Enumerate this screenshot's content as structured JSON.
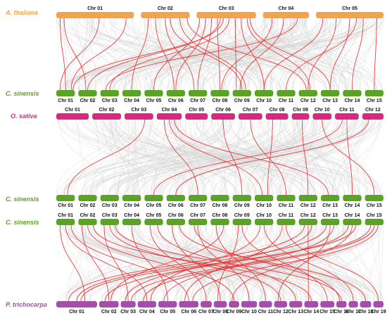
{
  "colors": {
    "thaliana": "#f5a24a",
    "sinensis": "#5aa324",
    "sativa": "#d42b82",
    "trichocarpa": "#a44fa7",
    "background_links": "#d2d2d2",
    "highlight_links": "#ec2b2b"
  },
  "species_labels": {
    "thaliana": "A. thaliana",
    "sinensis": "C. sinensis",
    "sativa": "O. sativa",
    "trichocarpa": "P. trichocarpa"
  },
  "chromosomes": {
    "thaliana": [
      "Chr 01",
      "Chr 02",
      "Chr 03",
      "Chr 04",
      "Chr 05"
    ],
    "sinensis": [
      "Chr 01",
      "Chr 02",
      "Chr 03",
      "Chr 04",
      "Chr 05",
      "Chr 06",
      "Chr 07",
      "Chr 08",
      "Chr 09",
      "Chr 10",
      "Chr 11",
      "Chr 12",
      "Chr 13",
      "Chr 14",
      "Chr 15"
    ],
    "sativa": [
      "Chr 01",
      "Chr 02",
      "Chr 03",
      "Chr 04",
      "Chr 05",
      "Chr 06",
      "Chr 07",
      "Chr 08",
      "Chr 09",
      "Chr 10",
      "Chr 11",
      "Chr 12"
    ],
    "trichocarpa": [
      "Chr 01",
      "Chr 02",
      "Chr 03",
      "Chr 04",
      "Chr 05",
      "Chr 06",
      "Chr 07",
      "Chr 08",
      "Chr 09",
      "Chr 10",
      "Chr 11",
      "Chr 12",
      "Chr 13",
      "Chr 14",
      "Chr 15",
      "Chr 16",
      "Chr 17",
      "Chr 18",
      "Chr 19"
    ]
  },
  "panels": [
    {
      "top_species": "thaliana",
      "bottom_species": "sinensis",
      "links": [
        [
          1,
          0.05,
          1,
          0.5
        ],
        [
          1,
          0.1,
          2,
          0.4
        ],
        [
          1,
          0.55,
          1,
          0.2
        ],
        [
          1,
          0.9,
          1,
          0.8
        ],
        [
          2,
          0.15,
          4,
          0.5
        ],
        [
          2,
          0.3,
          6,
          0.4
        ],
        [
          2,
          0.5,
          7,
          0.3
        ],
        [
          2,
          0.6,
          9,
          0.5
        ],
        [
          2,
          0.8,
          9,
          0.7
        ],
        [
          2,
          0.95,
          12,
          0.4
        ],
        [
          3,
          0.05,
          5,
          0.5
        ],
        [
          3,
          0.15,
          6,
          0.5
        ],
        [
          3,
          0.25,
          7,
          0.5
        ],
        [
          3,
          0.35,
          8,
          0.5
        ],
        [
          3,
          0.4,
          2,
          0.5
        ],
        [
          3,
          0.45,
          1,
          0.9
        ],
        [
          3,
          0.55,
          3,
          0.5
        ],
        [
          3,
          0.65,
          9,
          0.2
        ],
        [
          3,
          0.75,
          10,
          0.5
        ],
        [
          3,
          0.85,
          12,
          0.6
        ],
        [
          3,
          0.9,
          13,
          0.5
        ],
        [
          4,
          0.2,
          8,
          0.6
        ],
        [
          4,
          0.45,
          9,
          0.4
        ],
        [
          4,
          0.75,
          3,
          0.3
        ],
        [
          5,
          0.1,
          10,
          0.5
        ],
        [
          5,
          0.3,
          12,
          0.5
        ],
        [
          5,
          0.5,
          13,
          0.5
        ],
        [
          5,
          0.7,
          14,
          0.5
        ],
        [
          5,
          0.9,
          15,
          0.5
        ],
        [
          5,
          0.6,
          11,
          0.5
        ]
      ]
    },
    {
      "top_species": "sativa",
      "bottom_species": "sinensis",
      "links": [
        [
          3,
          0.7,
          1,
          0.6
        ],
        [
          4,
          0.3,
          7,
          0.5
        ],
        [
          4,
          0.5,
          10,
          0.4
        ],
        [
          4,
          0.7,
          13,
          0.4
        ],
        [
          6,
          0.5,
          9,
          0.5
        ],
        [
          7,
          0.5,
          11,
          0.5
        ],
        [
          9,
          0.6,
          12,
          0.5
        ],
        [
          10,
          0.5,
          15,
          0.5
        ],
        [
          11,
          0.3,
          5,
          0.5
        ],
        [
          11,
          0.5,
          14,
          0.5
        ],
        [
          8,
          0.3,
          10,
          0.7
        ],
        [
          12,
          0.3,
          6,
          0.5
        ]
      ]
    },
    {
      "top_species": "sinensis",
      "bottom_species": "trichocarpa",
      "links": [
        [
          1,
          0.2,
          1,
          0.7
        ],
        [
          1,
          0.5,
          4,
          0.5
        ],
        [
          1,
          0.8,
          6,
          0.5
        ],
        [
          2,
          0.2,
          2,
          0.5
        ],
        [
          2,
          0.5,
          9,
          0.5
        ],
        [
          2,
          0.8,
          14,
          0.5
        ],
        [
          3,
          0.2,
          3,
          0.5
        ],
        [
          3,
          0.5,
          12,
          0.5
        ],
        [
          3,
          0.8,
          16,
          0.5
        ],
        [
          4,
          0.5,
          5,
          0.5
        ],
        [
          5,
          0.3,
          7,
          0.5
        ],
        [
          5,
          0.7,
          13,
          0.5
        ],
        [
          6,
          0.3,
          8,
          0.5
        ],
        [
          6,
          0.7,
          18,
          0.5
        ],
        [
          7,
          0.5,
          10,
          0.5
        ],
        [
          8,
          0.3,
          11,
          0.5
        ],
        [
          8,
          0.7,
          2,
          0.6
        ],
        [
          9,
          0.5,
          15,
          0.5
        ],
        [
          10,
          0.5,
          17,
          0.5
        ],
        [
          11,
          0.5,
          19,
          0.5
        ],
        [
          12,
          0.3,
          1,
          0.3
        ],
        [
          12,
          0.7,
          3,
          0.3
        ],
        [
          13,
          0.3,
          1,
          0.5
        ],
        [
          13,
          0.7,
          5,
          0.3
        ],
        [
          14,
          0.3,
          2,
          0.3
        ],
        [
          14,
          0.7,
          1,
          0.6
        ],
        [
          15,
          0.3,
          3,
          0.7
        ],
        [
          15,
          0.7,
          6,
          0.7
        ],
        [
          15,
          0.5,
          4,
          0.3
        ],
        [
          14,
          0.5,
          9,
          0.3
        ],
        [
          13,
          0.5,
          12,
          0.3
        ],
        [
          12,
          0.5,
          14,
          0.3
        ],
        [
          11,
          0.3,
          6,
          0.3
        ],
        [
          10,
          0.3,
          4,
          0.7
        ],
        [
          9,
          0.3,
          8,
          0.3
        ],
        [
          7,
          0.3,
          16,
          0.3
        ]
      ]
    }
  ]
}
